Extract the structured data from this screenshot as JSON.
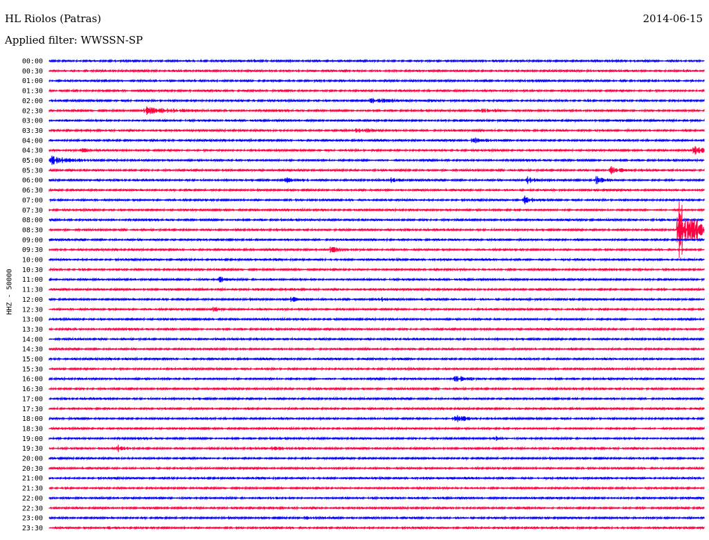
{
  "header": {
    "title": "HL Riolos (Patras)",
    "date": "2014-06-15",
    "filter": "Applied filter: WWSSN-SP"
  },
  "chart_data": {
    "type": "line",
    "title": "HL Riolos (Patras)",
    "subtitle": "Applied filter: WWSSN-SP",
    "ylabel": "HHZ - 50000",
    "xlabel": "",
    "grid": false,
    "legend": "none",
    "colors": [
      "#0000ff",
      "#ff0040"
    ],
    "categories": [
      "00:00",
      "00:30",
      "01:00",
      "01:30",
      "02:00",
      "02:30",
      "03:00",
      "03:30",
      "04:00",
      "04:30",
      "05:00",
      "05:30",
      "06:00",
      "06:30",
      "07:00",
      "07:30",
      "08:00",
      "08:30",
      "09:00",
      "09:30",
      "10:00",
      "10:30",
      "11:00",
      "11:30",
      "12:00",
      "12:30",
      "13:00",
      "13:30",
      "14:00",
      "14:30",
      "15:00",
      "15:30",
      "16:00",
      "16:30",
      "17:00",
      "17:30",
      "18:00",
      "18:30",
      "19:00",
      "19:30",
      "20:00",
      "20:30",
      "21:00",
      "21:30",
      "22:00",
      "22:30",
      "23:00",
      "23:30"
    ],
    "events": [
      {
        "row": 4,
        "at": 0.49,
        "amp": 0.55,
        "dur": 0.035
      },
      {
        "row": 5,
        "at": 0.145,
        "amp": 1.0,
        "dur": 0.04
      },
      {
        "row": 5,
        "at": 0.66,
        "amp": 0.5,
        "dur": 0.02
      },
      {
        "row": 7,
        "at": 0.47,
        "amp": 1.0,
        "dur": 0.015
      },
      {
        "row": 8,
        "at": 0.645,
        "amp": 1.0,
        "dur": 0.015
      },
      {
        "row": 9,
        "at": 0.05,
        "amp": 0.45,
        "dur": 0.015
      },
      {
        "row": 9,
        "at": 0.985,
        "amp": 1.0,
        "dur": 0.025
      },
      {
        "row": 10,
        "at": 0.003,
        "amp": 1.0,
        "dur": 0.025
      },
      {
        "row": 11,
        "at": 0.857,
        "amp": 1.0,
        "dur": 0.012
      },
      {
        "row": 12,
        "at": 0.362,
        "amp": 0.9,
        "dur": 0.01
      },
      {
        "row": 12,
        "at": 0.52,
        "amp": 0.9,
        "dur": 0.008
      },
      {
        "row": 12,
        "at": 0.73,
        "amp": 1.0,
        "dur": 0.012
      },
      {
        "row": 12,
        "at": 0.835,
        "amp": 1.0,
        "dur": 0.012
      },
      {
        "row": 14,
        "at": 0.725,
        "amp": 1.0,
        "dur": 0.01
      },
      {
        "row": 17,
        "at": 0.96,
        "amp": 8.0,
        "dur": 0.025
      },
      {
        "row": 19,
        "at": 0.43,
        "amp": 1.0,
        "dur": 0.01
      },
      {
        "row": 22,
        "at": 0.26,
        "amp": 1.0,
        "dur": 0.006
      },
      {
        "row": 24,
        "at": 0.37,
        "amp": 0.9,
        "dur": 0.008
      },
      {
        "row": 24,
        "at": 0.5,
        "amp": 0.8,
        "dur": 0.008
      },
      {
        "row": 25,
        "at": 0.25,
        "amp": 1.0,
        "dur": 0.006
      },
      {
        "row": 32,
        "at": 0.62,
        "amp": 1.0,
        "dur": 0.012
      },
      {
        "row": 36,
        "at": 0.62,
        "amp": 1.2,
        "dur": 0.012
      },
      {
        "row": 38,
        "at": 0.68,
        "amp": 0.5,
        "dur": 0.006
      },
      {
        "row": 39,
        "at": 0.105,
        "amp": 0.9,
        "dur": 0.008
      },
      {
        "row": 39,
        "at": 0.34,
        "amp": 0.45,
        "dur": 0.015
      },
      {
        "row": 44,
        "at": 0.335,
        "amp": 0.35,
        "dur": 0.01
      },
      {
        "row": 46,
        "at": 0.39,
        "amp": 0.3,
        "dur": 0.02
      },
      {
        "row": 47,
        "at": 0.09,
        "amp": 0.3,
        "dur": 0.01
      }
    ]
  }
}
